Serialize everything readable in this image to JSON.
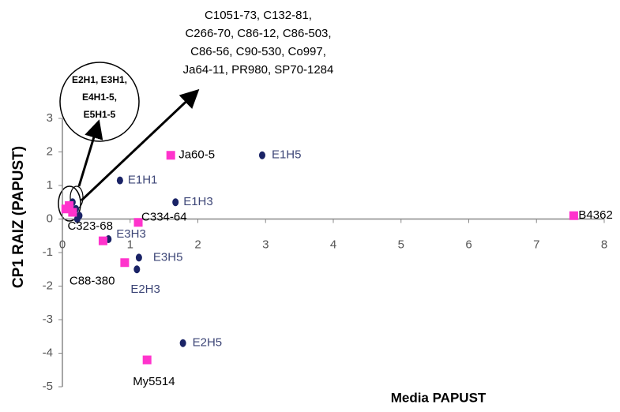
{
  "chart_data": {
    "type": "scatter",
    "x_label": "Media PAPUST",
    "y_label": "CP1 RAIZ (PAPUST)",
    "xlim": [
      0,
      8
    ],
    "ylim": [
      -5,
      3
    ],
    "xticks": [
      0,
      1,
      2,
      3,
      4,
      5,
      6,
      7,
      8
    ],
    "yticks": [
      -5,
      -4,
      -3,
      -2,
      -1,
      0,
      1,
      2,
      3
    ],
    "series": [
      {
        "color": "#1a2366",
        "marker": "circle",
        "x": [
          0.85,
          1.67,
          2.95,
          0.68,
          1.13,
          1.1,
          1.78,
          0.2,
          0.25,
          0.15,
          0.22
        ],
        "values": [
          1.15,
          0.5,
          1.9,
          -0.6,
          -1.15,
          -1.5,
          -3.7,
          0.3,
          0.1,
          0.5,
          0.0
        ],
        "labels": [
          "E1H1",
          "E1H3",
          "E1H5",
          "E3H3",
          "E3H5",
          "E2H3",
          "E2H5",
          null,
          null,
          null,
          null
        ]
      },
      {
        "color": "#ff33cc",
        "marker": "square",
        "x": [
          1.6,
          7.55,
          1.12,
          0.6,
          0.92,
          1.25,
          0.1,
          0.05,
          0.15
        ],
        "values": [
          1.9,
          0.1,
          -0.1,
          -0.65,
          -1.3,
          -4.2,
          0.4,
          0.3,
          0.2
        ],
        "labels": [
          "Ja60-5",
          "B4362",
          "C334-64",
          "C323-68",
          "C88-380",
          "My5514",
          null,
          null,
          null
        ]
      }
    ],
    "annotations": [
      {
        "lines": [
          "E2H1, E3H1,",
          "E4H1-5,",
          "E5H1-5"
        ]
      },
      {
        "lines": [
          "C1051-73, C132-81,",
          "C266-70, C86-12, C86-503,",
          "C86-56, C90-530, Co997,",
          "Ja64-11, PR980, SP70-1284"
        ]
      }
    ]
  }
}
